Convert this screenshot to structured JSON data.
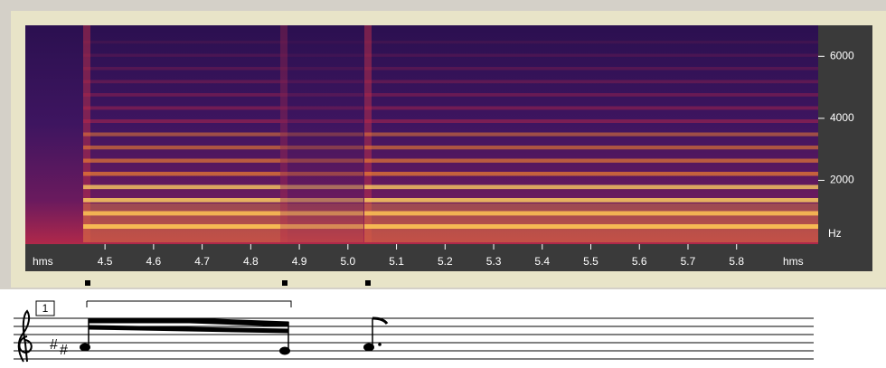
{
  "chart_data": {
    "type": "spectrogram",
    "x_unit": "hms",
    "y_unit": "Hz",
    "xlim": [
      4.336,
      5.968
    ],
    "xticks": [
      4.5,
      4.6,
      4.7,
      4.8,
      4.9,
      {
        "value": 5,
        "label": "5.0"
      },
      5.1,
      5.2,
      5.3,
      5.4,
      5.5,
      5.6,
      5.7,
      5.8
    ],
    "ylim": [
      0,
      7000
    ],
    "yticks": [
      2000,
      4000,
      6000
    ]
  },
  "score": {
    "measure_number": "1"
  }
}
